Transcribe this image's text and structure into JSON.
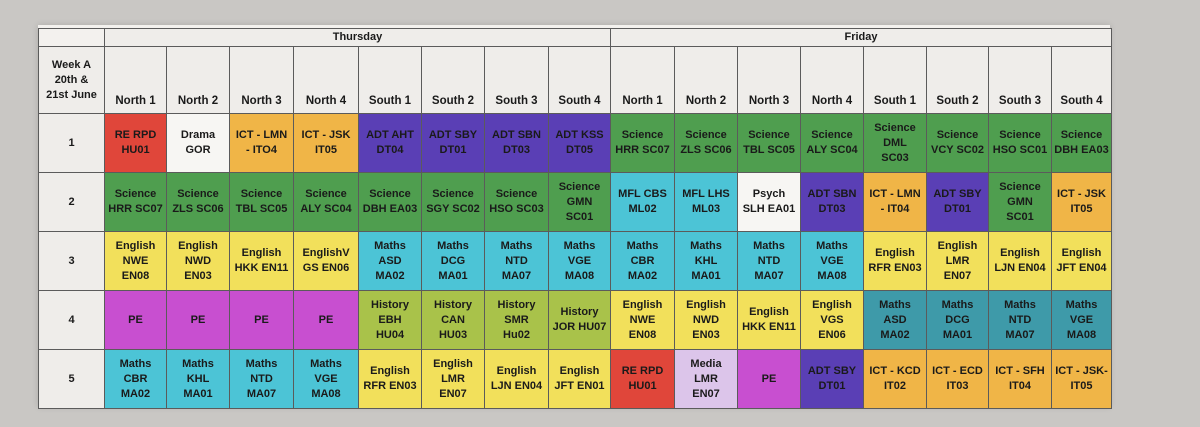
{
  "week_label": [
    "Week A",
    "20th  &",
    "21st June"
  ],
  "days": [
    "Thursday",
    "Friday"
  ],
  "columns": [
    "North 1",
    "North 2",
    "North 3",
    "North 4",
    "South 1",
    "South 2",
    "South 3",
    "South 4",
    "North 1",
    "North 2",
    "North 3",
    "North 4",
    "South 1",
    "South 2",
    "South 3",
    "South 4"
  ],
  "colors": {
    "red": "#e0463a",
    "white": "#f7f6f3",
    "orange": "#f0b547",
    "purple": "#5a3fb5",
    "green": "#4f9e4f",
    "yellow": "#f2e05b",
    "cyan": "#4cc4d6",
    "teal": "#3e9aa9",
    "magenta": "#c84fd0",
    "lilac": "#dcc5ea",
    "lime": "#a9c24a"
  },
  "periods": [
    {
      "num": "1",
      "cells": [
        {
          "bg": "red",
          "lines": [
            "RE RPD",
            "HU01"
          ]
        },
        {
          "bg": "white",
          "lines": [
            "Drama",
            "GOR"
          ]
        },
        {
          "bg": "orange",
          "lines": [
            "ICT - LMN",
            "- ITO4"
          ]
        },
        {
          "bg": "orange",
          "lines": [
            "ICT - JSK",
            "IT05"
          ]
        },
        {
          "bg": "purple",
          "lines": [
            "ADT AHT",
            "DT04"
          ]
        },
        {
          "bg": "purple",
          "lines": [
            "ADT SBY",
            "DT01"
          ]
        },
        {
          "bg": "purple",
          "lines": [
            "ADT SBN",
            "DT03"
          ]
        },
        {
          "bg": "purple",
          "lines": [
            "ADT KSS",
            "DT05"
          ]
        },
        {
          "bg": "green",
          "lines": [
            "Science",
            "HRR SC07"
          ]
        },
        {
          "bg": "green",
          "lines": [
            "Science",
            "ZLS SC06"
          ]
        },
        {
          "bg": "green",
          "lines": [
            "Science",
            "TBL SC05"
          ]
        },
        {
          "bg": "green",
          "lines": [
            "Science",
            "ALY SC04"
          ]
        },
        {
          "bg": "green",
          "lines": [
            "Science",
            "DML",
            "SC03"
          ]
        },
        {
          "bg": "green",
          "lines": [
            "Science",
            "VCY SC02"
          ]
        },
        {
          "bg": "green",
          "lines": [
            "Science",
            "HSO SC01"
          ]
        },
        {
          "bg": "green",
          "lines": [
            "Science",
            "DBH EA03"
          ]
        }
      ]
    },
    {
      "num": "2",
      "cells": [
        {
          "bg": "green",
          "lines": [
            "Science",
            "HRR SC07"
          ]
        },
        {
          "bg": "green",
          "lines": [
            "Science",
            "ZLS SC06"
          ]
        },
        {
          "bg": "green",
          "lines": [
            "Science",
            "TBL SC05"
          ]
        },
        {
          "bg": "green",
          "lines": [
            "Science",
            "ALY SC04"
          ]
        },
        {
          "bg": "green",
          "lines": [
            "Science",
            "DBH EA03"
          ]
        },
        {
          "bg": "green",
          "lines": [
            "Science",
            "SGY SC02"
          ]
        },
        {
          "bg": "green",
          "lines": [
            "Science",
            "HSO SC03"
          ]
        },
        {
          "bg": "green",
          "lines": [
            "Science",
            "GMN",
            "SC01"
          ]
        },
        {
          "bg": "cyan",
          "lines": [
            "MFL CBS",
            "ML02"
          ]
        },
        {
          "bg": "cyan",
          "lines": [
            "MFL LHS",
            "ML03"
          ]
        },
        {
          "bg": "white",
          "lines": [
            "Psych",
            "SLH EA01"
          ]
        },
        {
          "bg": "purple",
          "lines": [
            "ADT SBN",
            "DT03"
          ]
        },
        {
          "bg": "orange",
          "lines": [
            "ICT - LMN",
            "- IT04"
          ]
        },
        {
          "bg": "purple",
          "lines": [
            "ADT SBY",
            "DT01"
          ]
        },
        {
          "bg": "green",
          "lines": [
            "Science",
            "GMN",
            "SC01"
          ]
        },
        {
          "bg": "orange",
          "lines": [
            "ICT - JSK",
            "IT05"
          ]
        }
      ]
    },
    {
      "num": "3",
      "cells": [
        {
          "bg": "yellow",
          "lines": [
            "English",
            "NWE",
            "EN08"
          ]
        },
        {
          "bg": "yellow",
          "lines": [
            "English",
            "NWD",
            "EN03"
          ]
        },
        {
          "bg": "yellow",
          "lines": [
            "English",
            "HKK EN11"
          ]
        },
        {
          "bg": "yellow",
          "lines": [
            "EnglishV",
            "GS EN06"
          ]
        },
        {
          "bg": "cyan",
          "lines": [
            "Maths",
            "ASD",
            "MA02"
          ]
        },
        {
          "bg": "cyan",
          "lines": [
            "Maths",
            "DCG",
            "MA01"
          ]
        },
        {
          "bg": "cyan",
          "lines": [
            "Maths",
            "NTD",
            "MA07"
          ]
        },
        {
          "bg": "cyan",
          "lines": [
            "Maths",
            "VGE",
            "MA08"
          ]
        },
        {
          "bg": "cyan",
          "lines": [
            "Maths",
            "CBR",
            "MA02"
          ]
        },
        {
          "bg": "cyan",
          "lines": [
            "Maths",
            "KHL",
            "MA01"
          ]
        },
        {
          "bg": "cyan",
          "lines": [
            "Maths",
            "NTD",
            "MA07"
          ]
        },
        {
          "bg": "cyan",
          "lines": [
            "Maths",
            "VGE",
            "MA08"
          ]
        },
        {
          "bg": "yellow",
          "lines": [
            "English",
            "RFR EN03"
          ]
        },
        {
          "bg": "yellow",
          "lines": [
            "English",
            "LMR",
            "EN07"
          ]
        },
        {
          "bg": "yellow",
          "lines": [
            "English",
            "LJN EN04"
          ]
        },
        {
          "bg": "yellow",
          "lines": [
            "English",
            "JFT EN04"
          ]
        }
      ]
    },
    {
      "num": "4",
      "cells": [
        {
          "bg": "magenta",
          "lines": [
            "PE"
          ]
        },
        {
          "bg": "magenta",
          "lines": [
            "PE"
          ]
        },
        {
          "bg": "magenta",
          "lines": [
            "PE"
          ]
        },
        {
          "bg": "magenta",
          "lines": [
            "PE"
          ]
        },
        {
          "bg": "lime",
          "lines": [
            "History",
            "EBH",
            "HU04"
          ]
        },
        {
          "bg": "lime",
          "lines": [
            "History",
            "CAN",
            "HU03"
          ]
        },
        {
          "bg": "lime",
          "lines": [
            "History",
            "SMR",
            "Hu02"
          ]
        },
        {
          "bg": "lime",
          "lines": [
            "History",
            "JOR HU07"
          ]
        },
        {
          "bg": "yellow",
          "lines": [
            "English",
            "NWE",
            "EN08"
          ]
        },
        {
          "bg": "yellow",
          "lines": [
            "English",
            "NWD",
            "EN03"
          ]
        },
        {
          "bg": "yellow",
          "lines": [
            "English",
            "HKK EN11"
          ]
        },
        {
          "bg": "yellow",
          "lines": [
            "English",
            "VGS",
            "EN06"
          ]
        },
        {
          "bg": "teal",
          "lines": [
            "Maths",
            "ASD",
            "MA02"
          ]
        },
        {
          "bg": "teal",
          "lines": [
            "Maths",
            "DCG",
            "MA01"
          ]
        },
        {
          "bg": "teal",
          "lines": [
            "Maths",
            "NTD",
            "MA07"
          ]
        },
        {
          "bg": "teal",
          "lines": [
            "Maths",
            "VGE",
            "MA08"
          ]
        }
      ]
    },
    {
      "num": "5",
      "cells": [
        {
          "bg": "cyan",
          "lines": [
            "Maths",
            "CBR",
            "MA02"
          ]
        },
        {
          "bg": "cyan",
          "lines": [
            "Maths",
            "KHL",
            "MA01"
          ]
        },
        {
          "bg": "cyan",
          "lines": [
            "Maths",
            "NTD",
            "MA07"
          ]
        },
        {
          "bg": "cyan",
          "lines": [
            "Maths",
            "VGE",
            "MA08"
          ]
        },
        {
          "bg": "yellow",
          "lines": [
            "English",
            "RFR EN03"
          ]
        },
        {
          "bg": "yellow",
          "lines": [
            "English",
            "LMR",
            "EN07"
          ]
        },
        {
          "bg": "yellow",
          "lines": [
            "English",
            "LJN EN04"
          ]
        },
        {
          "bg": "yellow",
          "lines": [
            "English",
            "JFT EN01"
          ]
        },
        {
          "bg": "red",
          "lines": [
            "RE RPD",
            "HU01"
          ]
        },
        {
          "bg": "lilac",
          "lines": [
            "Media",
            "LMR",
            "EN07"
          ]
        },
        {
          "bg": "magenta",
          "lines": [
            "PE"
          ]
        },
        {
          "bg": "purple",
          "lines": [
            "ADT SBY",
            "DT01"
          ]
        },
        {
          "bg": "orange",
          "lines": [
            "ICT - KCD",
            "IT02"
          ]
        },
        {
          "bg": "orange",
          "lines": [
            "ICT - ECD",
            "IT03"
          ]
        },
        {
          "bg": "orange",
          "lines": [
            "ICT - SFH",
            "IT04"
          ]
        },
        {
          "bg": "orange",
          "lines": [
            "ICT - JSK-",
            "IT05"
          ]
        }
      ]
    }
  ]
}
